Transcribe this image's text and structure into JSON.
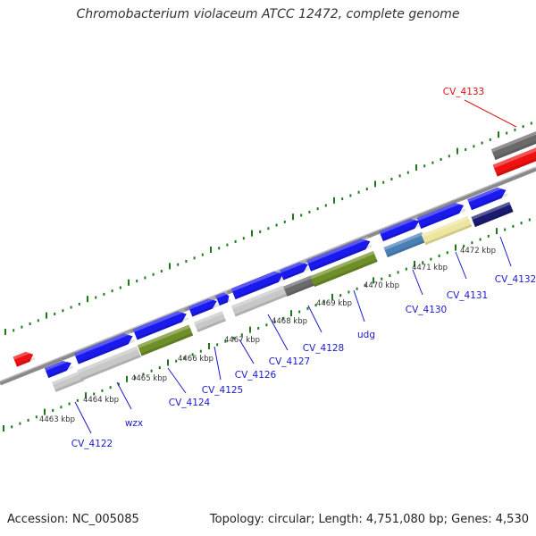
{
  "title": "Chromobacterium violaceum ATCC 12472, complete genome",
  "footer": {
    "accession": "Accession: NC_005085",
    "summary": "Topology: circular; Length: 4,751,080 bp; Genes: 4,530"
  },
  "colors": {
    "forward_gene": "#1a1aee",
    "highlight_gene": "#ee1111",
    "gray_light": "#c8c8c8",
    "gray_dark": "#6a6a6a",
    "olive": "#6e8e28",
    "steel_blue": "#4a80b8",
    "khaki": "#eee6a0",
    "navy": "#1a1a70",
    "backbone": "#8a8a8a",
    "tick_green": "#1a7a1a",
    "label_blue": "#1a1acc",
    "label_red": "#dd1111"
  },
  "scale_labels": [
    "4463 kbp",
    "4464 kbp",
    "4465 kbp",
    "4466 kbp",
    "4467 kbp",
    "4468 kbp",
    "4469 kbp",
    "4470 kbp",
    "4471 kbp",
    "4472 kbp"
  ],
  "gene_labels": [
    {
      "name": "CV_4122",
      "color": "blue"
    },
    {
      "name": "wzx",
      "color": "blue"
    },
    {
      "name": "CV_4124",
      "color": "blue"
    },
    {
      "name": "CV_4125",
      "color": "blue"
    },
    {
      "name": "CV_4126",
      "color": "blue"
    },
    {
      "name": "CV_4127",
      "color": "blue"
    },
    {
      "name": "CV_4128",
      "color": "blue"
    },
    {
      "name": "udg",
      "color": "blue"
    },
    {
      "name": "CV_4130",
      "color": "blue"
    },
    {
      "name": "CV_4131",
      "color": "blue"
    },
    {
      "name": "CV_4132",
      "color": "blue"
    },
    {
      "name": "CV_4133",
      "color": "red"
    }
  ]
}
